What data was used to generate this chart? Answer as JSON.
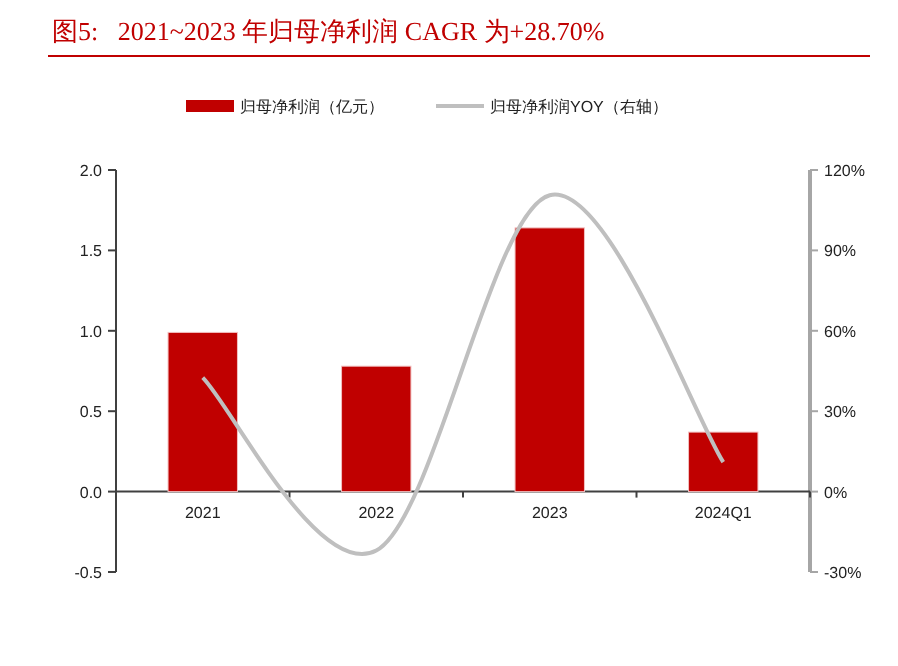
{
  "chart_data": {
    "type": "bar",
    "title": "图5:   2021~2023 年归母净利润 CAGR 为+28.70%",
    "categories": [
      "2021",
      "2022",
      "2023",
      "2024Q1"
    ],
    "series": [
      {
        "name": "归母净利润（亿元）",
        "color": "#c00000",
        "values": [
          0.99,
          0.78,
          1.64,
          0.37
        ]
      },
      {
        "name": "归母净利润YOY（右轴）",
        "type": "line",
        "axis": "y2",
        "color": "#bfbfbf",
        "values": [
          42.5,
          -22,
          110.6,
          11
        ]
      }
    ],
    "ylim": [
      -0.5,
      2.0
    ],
    "yticks": [
      {
        "value": -0.5,
        "label": "-0.5"
      },
      {
        "value": 0,
        "label": "0.0"
      },
      {
        "value": 0.5,
        "label": "0.5"
      },
      {
        "value": 1,
        "label": "1.0"
      },
      {
        "value": 1.5,
        "label": "1.5"
      },
      {
        "value": 2,
        "label": "2.0"
      }
    ],
    "y2lim": [
      -30,
      120
    ],
    "y2ticks": [
      {
        "value": -30,
        "label": "-30%"
      },
      {
        "value": 0,
        "label": "0%"
      },
      {
        "value": 30,
        "label": "30%"
      },
      {
        "value": 60,
        "label": "60%"
      },
      {
        "value": 90,
        "label": "90%"
      },
      {
        "value": 120,
        "label": "120%"
      }
    ],
    "legend": "top"
  }
}
